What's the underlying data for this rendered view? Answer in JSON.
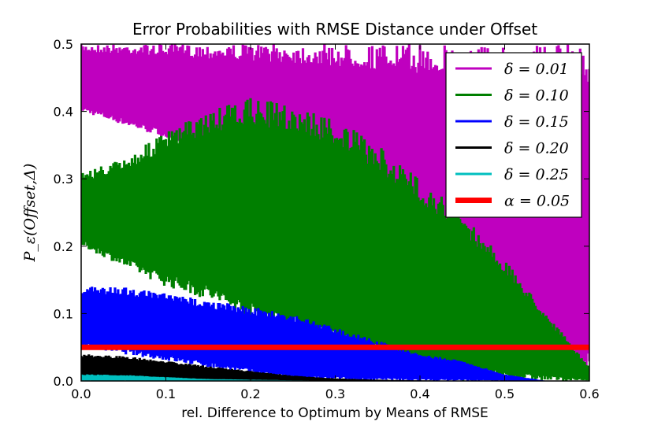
{
  "chart_data": {
    "type": "area",
    "title": "Error Probabilities with RMSE Distance under Offset",
    "xlabel": "rel. Difference to Optimum by Means of RMSE",
    "ylabel": "P_ε(Offset,Δ)",
    "xlim": [
      0.0,
      0.6
    ],
    "ylim": [
      0.0,
      0.5
    ],
    "xticks": [
      "0.0",
      "0.1",
      "0.2",
      "0.3",
      "0.4",
      "0.5",
      "0.6"
    ],
    "yticks": [
      "0.0",
      "0.1",
      "0.2",
      "0.3",
      "0.4",
      "0.5"
    ],
    "grid": false,
    "legend_position": "top-right",
    "series": [
      {
        "name": "δ = 0.01",
        "color": "#bf00bf",
        "x": [
          0.0,
          0.05,
          0.1,
          0.15,
          0.2,
          0.25,
          0.3,
          0.35,
          0.4,
          0.45,
          0.5,
          0.55,
          0.6
        ],
        "lower": [
          0.4,
          0.38,
          0.36,
          0.32,
          0.3,
          0.26,
          0.22,
          0.18,
          0.14,
          0.1,
          0.06,
          0.02,
          0.0
        ],
        "upper": [
          0.5,
          0.5,
          0.5,
          0.5,
          0.5,
          0.5,
          0.5,
          0.5,
          0.5,
          0.5,
          0.5,
          0.5,
          0.5
        ]
      },
      {
        "name": "δ = 0.10",
        "color": "#007f00",
        "x": [
          0.0,
          0.05,
          0.1,
          0.15,
          0.2,
          0.25,
          0.3,
          0.35,
          0.4,
          0.45,
          0.5,
          0.55,
          0.6
        ],
        "lower": [
          0.2,
          0.17,
          0.14,
          0.12,
          0.09,
          0.07,
          0.05,
          0.03,
          0.01,
          0.0,
          0.0,
          0.0,
          0.0
        ],
        "upper": [
          0.31,
          0.33,
          0.37,
          0.4,
          0.42,
          0.41,
          0.39,
          0.35,
          0.3,
          0.25,
          0.18,
          0.1,
          0.02
        ]
      },
      {
        "name": "δ = 0.15",
        "color": "#0000ff",
        "x": [
          0.0,
          0.05,
          0.1,
          0.15,
          0.2,
          0.25,
          0.3,
          0.35,
          0.4,
          0.45,
          0.5,
          0.55,
          0.6
        ],
        "lower": [
          0.05,
          0.04,
          0.03,
          0.02,
          0.01,
          0.0,
          0.0,
          0.0,
          0.0,
          0.0,
          0.0,
          0.0,
          0.0
        ],
        "upper": [
          0.14,
          0.14,
          0.13,
          0.12,
          0.11,
          0.1,
          0.08,
          0.06,
          0.04,
          0.03,
          0.01,
          0.0,
          0.0
        ]
      },
      {
        "name": "δ = 0.20",
        "color": "#000000",
        "x": [
          0.0,
          0.05,
          0.1,
          0.15,
          0.2,
          0.25,
          0.3,
          0.35,
          0.4,
          0.45,
          0.5,
          0.55,
          0.6
        ],
        "lower": [
          0.005,
          0.004,
          0.002,
          0.0,
          0.0,
          0.0,
          0.0,
          0.0,
          0.0,
          0.0,
          0.0,
          0.0,
          0.0
        ],
        "upper": [
          0.04,
          0.037,
          0.03,
          0.022,
          0.015,
          0.008,
          0.004,
          0.002,
          0.001,
          0.0,
          0.0,
          0.0,
          0.0
        ]
      },
      {
        "name": "δ = 0.25",
        "color": "#00bfbf",
        "x": [
          0.0,
          0.05,
          0.1,
          0.15,
          0.2,
          0.25,
          0.3,
          0.35,
          0.4,
          0.45,
          0.5,
          0.55,
          0.6
        ],
        "lower": [
          0.0,
          0.0,
          0.0,
          0.0,
          0.0,
          0.0,
          0.0,
          0.0,
          0.0,
          0.0,
          0.0,
          0.0,
          0.0
        ],
        "upper": [
          0.01,
          0.009,
          0.006,
          0.003,
          0.002,
          0.001,
          0.0,
          0.0,
          0.0,
          0.0,
          0.0,
          0.0,
          0.0
        ]
      }
    ],
    "threshold": {
      "name": "α = 0.05",
      "value": 0.05,
      "color": "#ff0000"
    }
  }
}
